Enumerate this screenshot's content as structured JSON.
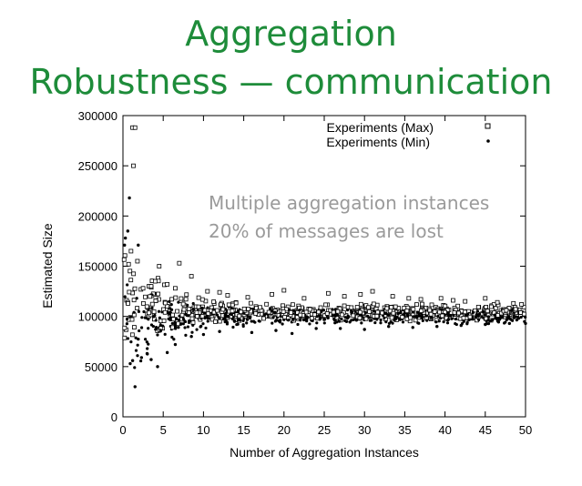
{
  "slide": {
    "title_line_1": "Aggregation",
    "title_line_2": "Robustness — communication",
    "title_color": "#1e8c3a"
  },
  "chart_data": {
    "type": "scatter",
    "xlabel": "Number of Aggregation Instances",
    "ylabel": "Estimated Size",
    "xlim": [
      0,
      50
    ],
    "ylim": [
      0,
      300000
    ],
    "xticks": [
      0,
      5,
      10,
      15,
      20,
      25,
      30,
      35,
      40,
      45,
      50
    ],
    "yticks": [
      0,
      50000,
      100000,
      150000,
      200000,
      250000,
      300000
    ],
    "xtick_labels": [
      "0",
      "5",
      "10",
      "15",
      "20",
      "25",
      "30",
      "35",
      "40",
      "45",
      "50"
    ],
    "ytick_labels": [
      "0",
      "50000",
      "100000",
      "150000",
      "200000",
      "250000",
      "300000"
    ],
    "grid": false,
    "legend_position": "top-right",
    "annotations": [
      "Multiple aggregation instances",
      "20% of messages are lost"
    ],
    "annotation_color": "#9a9a9a",
    "series": [
      {
        "name": "Experiments (Max)",
        "marker": "open-square",
        "color": "#000000",
        "points": [
          [
            1.2,
            288000
          ],
          [
            1.5,
            288000
          ],
          [
            1.3,
            250000
          ],
          [
            1.0,
            165000
          ],
          [
            0.7,
            152000
          ],
          [
            1.8,
            155000
          ],
          [
            4.0,
            135000
          ],
          [
            4.5,
            150000
          ],
          [
            5.5,
            132000
          ],
          [
            7.0,
            153000
          ],
          [
            8.5,
            140000
          ],
          [
            3.5,
            130000
          ],
          [
            2.5,
            128000
          ],
          [
            6.5,
            128000
          ],
          [
            10.5,
            125000
          ],
          [
            12.0,
            124000
          ],
          [
            13.0,
            121000
          ],
          [
            15.5,
            119000
          ],
          [
            18.5,
            122000
          ],
          [
            20.0,
            126000
          ],
          [
            22.5,
            118000
          ],
          [
            25.5,
            123000
          ],
          [
            27.5,
            120000
          ],
          [
            29.5,
            122000
          ],
          [
            31.0,
            125000
          ],
          [
            33.5,
            120000
          ],
          [
            35.5,
            118000
          ],
          [
            37.0,
            117000
          ],
          [
            39.5,
            118000
          ],
          [
            41.0,
            116000
          ],
          [
            42.5,
            115000
          ],
          [
            45.0,
            118000
          ],
          [
            46.5,
            114000
          ],
          [
            48.5,
            113000
          ],
          [
            49.5,
            112000
          ]
        ]
      },
      {
        "name": "Experiments (Min)",
        "marker": "dot",
        "color": "#000000",
        "points": [
          [
            0.8,
            218000
          ],
          [
            0.2,
            171000
          ],
          [
            0.3,
            178000
          ],
          [
            0.6,
            185000
          ],
          [
            1.9,
            171000
          ],
          [
            1.5,
            30000
          ],
          [
            0.9,
            53000
          ],
          [
            1.2,
            56000
          ],
          [
            2.3,
            59000
          ],
          [
            3.5,
            57000
          ],
          [
            4.3,
            50000
          ],
          [
            5.5,
            64000
          ],
          [
            6.5,
            72000
          ],
          [
            3.0,
            63000
          ],
          [
            8.5,
            80000
          ],
          [
            10.0,
            82000
          ],
          [
            12.0,
            85000
          ],
          [
            16.0,
            84000
          ],
          [
            19.0,
            86000
          ],
          [
            21.0,
            83000
          ],
          [
            24.0,
            88000
          ],
          [
            27.0,
            88000
          ],
          [
            30.0,
            87000
          ],
          [
            33.0,
            90000
          ],
          [
            36.0,
            89000
          ],
          [
            39.0,
            90000
          ],
          [
            42.0,
            91000
          ],
          [
            45.0,
            92000
          ],
          [
            48.0,
            93000
          ],
          [
            50.0,
            93000
          ]
        ]
      }
    ]
  }
}
